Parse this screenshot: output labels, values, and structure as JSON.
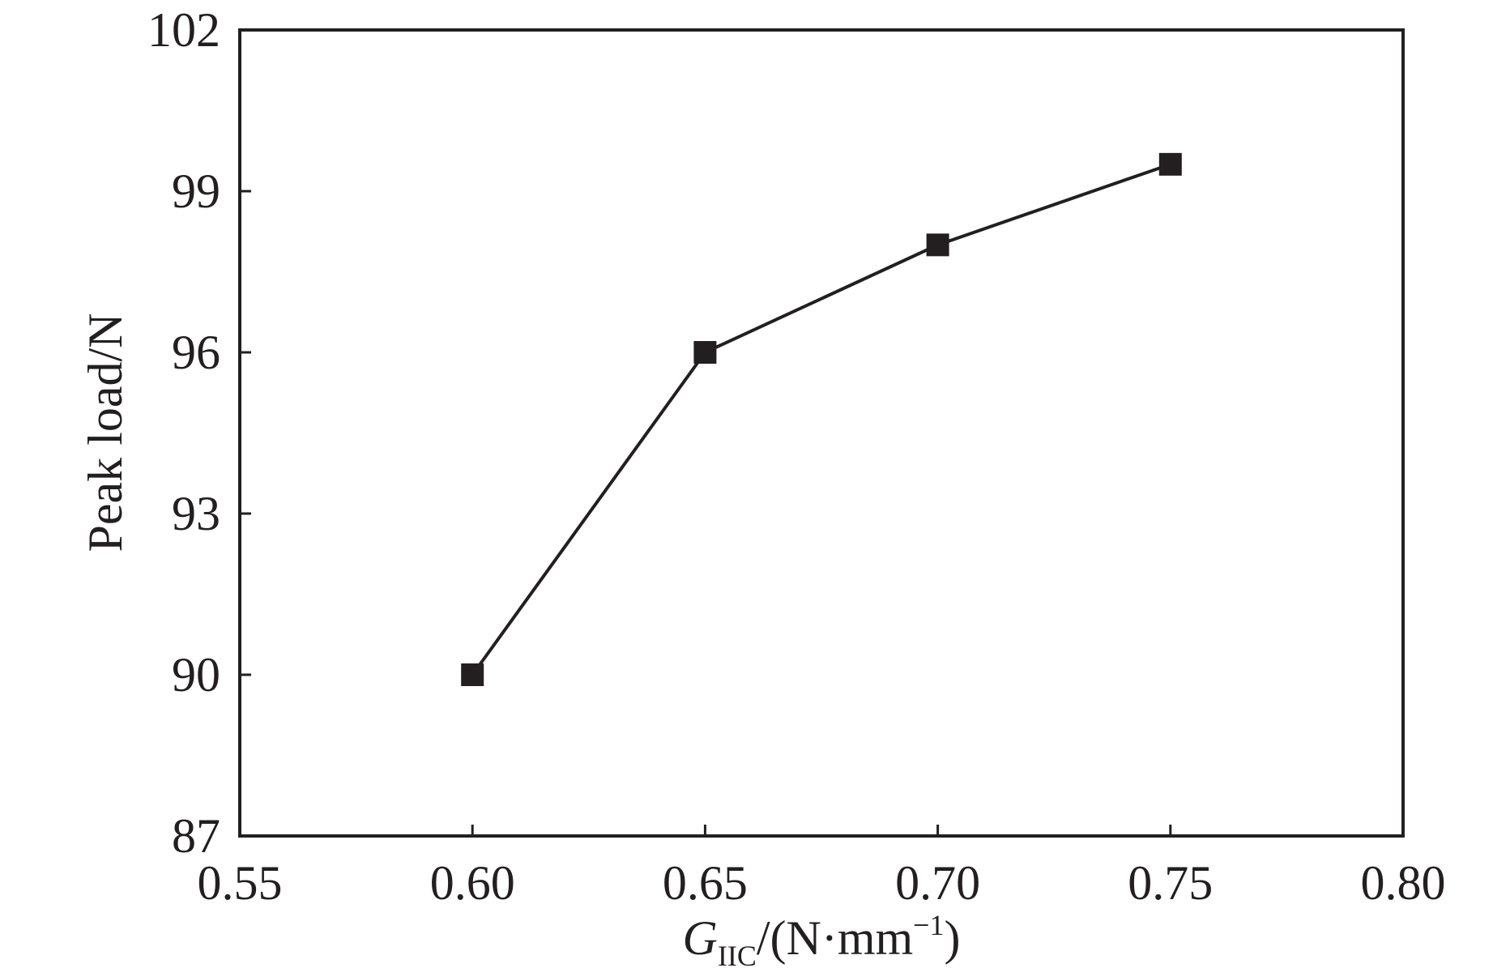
{
  "chart_data": {
    "type": "line",
    "title": "",
    "x": [
      0.6,
      0.65,
      0.7,
      0.75
    ],
    "series": [
      {
        "values": [
          90,
          96,
          98,
          99.5
        ],
        "marker": "square",
        "color": "#231f20"
      }
    ],
    "xlim": [
      0.55,
      0.8
    ],
    "ylim": [
      87,
      102
    ],
    "xticks": [
      "0.55",
      "0.60",
      "0.65",
      "0.70",
      "0.75",
      "0.80"
    ],
    "yticks": [
      "87",
      "90",
      "93",
      "96",
      "99",
      "102"
    ],
    "xlabel": {
      "symbol": "G",
      "subscript": "IIC",
      "unit_prefix": "/(N·mm",
      "superscript": "−1",
      "unit_suffix": ")"
    },
    "ylabel": "Peak load/N",
    "grid": false,
    "legend": false
  }
}
